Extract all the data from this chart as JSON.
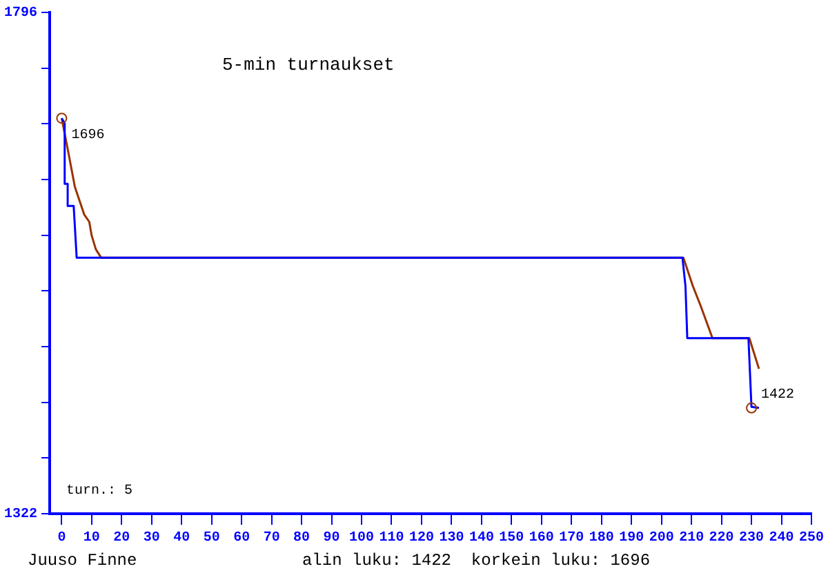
{
  "chart_data": {
    "type": "line",
    "title": "5-min turnaukset",
    "series": [
      {
        "color": "#0000ff",
        "x": [
          0,
          1,
          1,
          2,
          2,
          4,
          5,
          13,
          207,
          208,
          208.6,
          229,
          230,
          232.5
        ],
        "values": [
          1696,
          1691,
          1634,
          1634,
          1613,
          1613,
          1564,
          1564,
          1564,
          1537,
          1488,
          1488,
          1423,
          1422
        ]
      },
      {
        "color": "#993300",
        "x": [
          0,
          2.2,
          4.4,
          7.5,
          9.2,
          10,
          11.4,
          13.2,
          207.3,
          210.5,
          213,
          217,
          229.3,
          232.5
        ],
        "values": [
          1696,
          1664,
          1631,
          1605,
          1598,
          1585,
          1572,
          1564,
          1564,
          1537,
          1519,
          1488,
          1488,
          1459
        ]
      }
    ],
    "xlim": [
      -4,
      250
    ],
    "xticks": [
      0,
      10,
      20,
      30,
      40,
      50,
      60,
      70,
      80,
      90,
      100,
      110,
      120,
      130,
      140,
      150,
      160,
      170,
      180,
      190,
      200,
      210,
      220,
      230,
      240,
      250
    ],
    "ylim": [
      1322,
      1796
    ],
    "yticks": [
      1322,
      {
        "value": 1374.7,
        "label": null
      },
      {
        "value": 1427.3,
        "label": null
      },
      {
        "value": 1480,
        "label": null
      },
      {
        "value": 1532.7,
        "label": null
      },
      {
        "value": 1585.3,
        "label": null
      },
      {
        "value": 1638,
        "label": null
      },
      {
        "value": 1690.7,
        "label": null
      },
      {
        "value": 1743.3,
        "label": null
      },
      1796
    ],
    "annotations": [
      {
        "text": "1696",
        "x": 0,
        "y": 1696
      },
      {
        "text": "1422",
        "x": 230,
        "y": 1422
      },
      "turn.: 5",
      "Juuso Finne",
      "alin luku: 1422  korkein luku: 1696"
    ],
    "grid": false,
    "legend": false,
    "marker": "none",
    "line_style": "solid"
  }
}
